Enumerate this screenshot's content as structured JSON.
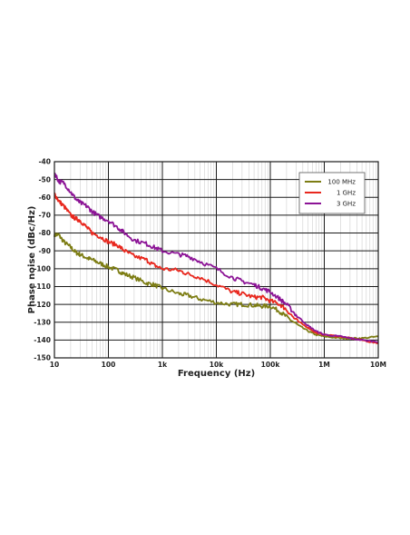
{
  "chart_data": {
    "type": "line",
    "title": "",
    "xlabel": "Frequency (Hz)",
    "ylabel": "Phase noise (dBc/Hz)",
    "x_scale": "log",
    "xlim": [
      10,
      10000000
    ],
    "ylim": [
      -150,
      -40
    ],
    "grid": true,
    "legend_position": "top-right",
    "x_ticks": [
      {
        "value": 10,
        "label": "10"
      },
      {
        "value": 100,
        "label": "100"
      },
      {
        "value": 1000,
        "label": "1k"
      },
      {
        "value": 10000,
        "label": "10k"
      },
      {
        "value": 100000,
        "label": "100k"
      },
      {
        "value": 1000000,
        "label": "1M"
      },
      {
        "value": 10000000,
        "label": "10M"
      }
    ],
    "y_ticks": [
      {
        "value": -40,
        "label": "-40"
      },
      {
        "value": -50,
        "label": "-50"
      },
      {
        "value": -60,
        "label": "-60"
      },
      {
        "value": -70,
        "label": "-70"
      },
      {
        "value": -80,
        "label": "-80"
      },
      {
        "value": -90,
        "label": "-90"
      },
      {
        "value": -100,
        "label": "-100"
      },
      {
        "value": -110,
        "label": "-110"
      },
      {
        "value": -120,
        "label": "-120"
      },
      {
        "value": -130,
        "label": "-130"
      },
      {
        "value": -140,
        "label": "-140"
      },
      {
        "value": -150,
        "label": "-150"
      }
    ],
    "series": [
      {
        "name": "100 MHz",
        "color": "#7d7d14",
        "x": [
          10,
          12,
          15,
          20,
          25,
          30,
          40,
          50,
          70,
          100,
          150,
          200,
          300,
          500,
          700,
          1000,
          2000,
          3000,
          5000,
          10000,
          20000,
          30000,
          50000,
          70000,
          100000,
          150000,
          200000,
          300000,
          500000,
          700000,
          1000000,
          2000000,
          3000000,
          5000000,
          10000000
        ],
        "y": [
          -81,
          -81,
          -85,
          -88,
          -91,
          -92,
          -94,
          -95,
          -97,
          -99,
          -101,
          -103,
          -105,
          -108,
          -109,
          -111,
          -114,
          -115,
          -117,
          -119,
          -120,
          -120,
          -120.5,
          -121,
          -121,
          -124,
          -127,
          -131,
          -135,
          -137,
          -138,
          -139,
          -139,
          -139,
          -138
        ]
      },
      {
        "name": "1 GHz",
        "color": "#e8281e",
        "x": [
          10,
          12,
          15,
          20,
          25,
          30,
          40,
          50,
          70,
          100,
          150,
          200,
          300,
          500,
          700,
          1000,
          2000,
          3000,
          5000,
          10000,
          20000,
          30000,
          50000,
          70000,
          100000,
          150000,
          200000,
          300000,
          500000,
          700000,
          1000000,
          2000000,
          3000000,
          5000000,
          10000000
        ],
        "y": [
          -58,
          -62,
          -65,
          -70,
          -72,
          -73,
          -77,
          -80,
          -82,
          -85,
          -87,
          -90,
          -93,
          -95,
          -98,
          -100,
          -101,
          -103,
          -105,
          -109,
          -113,
          -114,
          -116,
          -116,
          -118,
          -120,
          -123,
          -129,
          -133,
          -136,
          -137,
          -138,
          -139,
          -140,
          -142
        ]
      },
      {
        "name": "3 GHz",
        "color": "#8c1496",
        "x": [
          10,
          12,
          15,
          20,
          25,
          30,
          40,
          50,
          70,
          100,
          150,
          200,
          300,
          500,
          700,
          1000,
          2000,
          3000,
          5000,
          10000,
          20000,
          30000,
          50000,
          70000,
          100000,
          150000,
          200000,
          300000,
          500000,
          700000,
          1000000,
          2000000,
          3000000,
          5000000,
          10000000
        ],
        "y": [
          -46,
          -51,
          -52,
          -57,
          -61,
          -63,
          -65,
          -68,
          -71,
          -73,
          -77,
          -80,
          -84,
          -86,
          -88,
          -90,
          -92,
          -93,
          -96,
          -100,
          -105,
          -107,
          -109,
          -111,
          -113,
          -117,
          -120,
          -126,
          -132,
          -135,
          -137,
          -138,
          -139,
          -140,
          -141
        ]
      }
    ]
  }
}
